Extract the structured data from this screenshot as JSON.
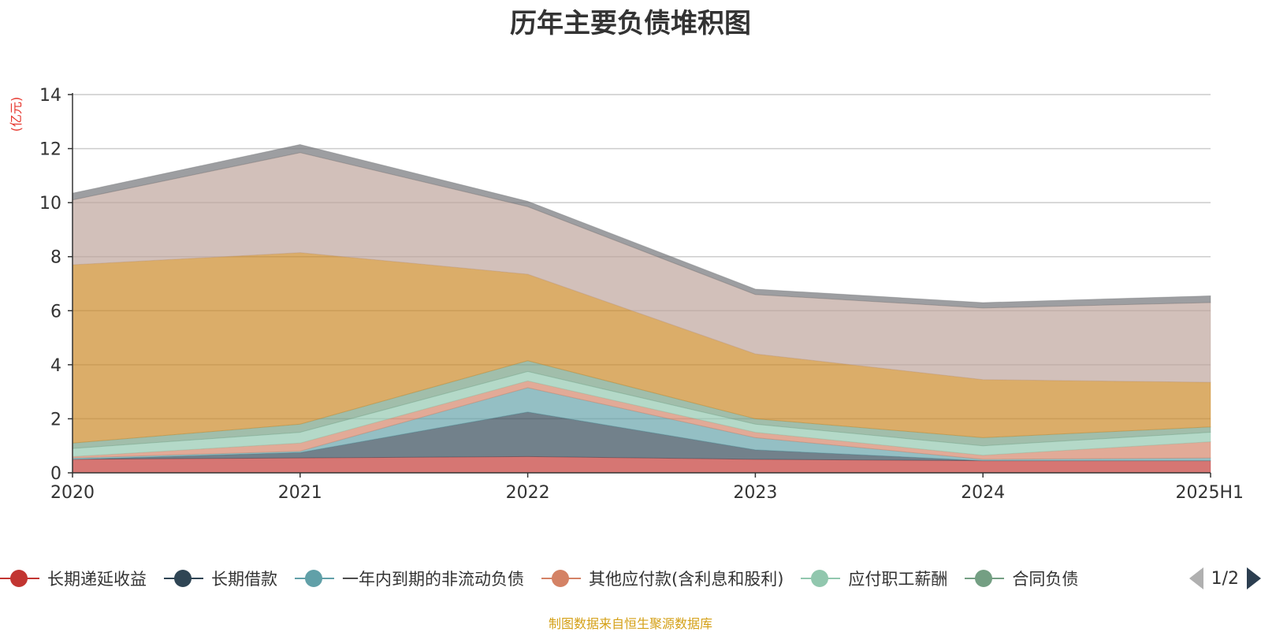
{
  "chart_data": {
    "type": "area",
    "stacked": true,
    "title": "历年主要负债堆积图",
    "ylabel": "(亿元)",
    "ylim": [
      0,
      14
    ],
    "yticks": [
      0,
      2,
      4,
      6,
      8,
      10,
      12,
      14
    ],
    "grid": true,
    "legend_position": "bottom",
    "categories": [
      "2020",
      "2021",
      "2022",
      "2023",
      "2024",
      "2025H1"
    ],
    "series": [
      {
        "name": "长期递延收益",
        "color": "#c23531",
        "values": [
          0.5,
          0.55,
          0.6,
          0.5,
          0.45,
          0.45
        ]
      },
      {
        "name": "长期借款",
        "color": "#2f4554",
        "values": [
          0.0,
          0.2,
          1.65,
          0.35,
          0.0,
          0.0
        ]
      },
      {
        "name": "一年内到期的非流动负债",
        "color": "#61a0a8",
        "values": [
          0.05,
          0.05,
          0.9,
          0.45,
          0.05,
          0.1
        ]
      },
      {
        "name": "其他应付款(含利息和股利)",
        "color": "#d48265",
        "values": [
          0.05,
          0.3,
          0.25,
          0.2,
          0.15,
          0.6
        ]
      },
      {
        "name": "应付职工薪酬",
        "color": "#91c7ae",
        "values": [
          0.3,
          0.4,
          0.35,
          0.3,
          0.35,
          0.35
        ]
      },
      {
        "name": "合同负债",
        "color": "#749f83",
        "values": [
          0.2,
          0.3,
          0.4,
          0.2,
          0.3,
          0.2
        ]
      },
      {
        "name": "",
        "color": "#ca8622",
        "values": [
          6.6,
          6.35,
          3.2,
          2.4,
          2.15,
          1.65
        ]
      },
      {
        "name": "",
        "color": "#bda29a",
        "values": [
          2.4,
          3.7,
          2.5,
          2.2,
          2.65,
          2.95
        ]
      },
      {
        "name": "",
        "color": "#6e7074",
        "values": [
          0.25,
          0.3,
          0.2,
          0.2,
          0.2,
          0.25
        ]
      }
    ]
  },
  "legend": {
    "page": "1/2",
    "visible_series": [
      0,
      1,
      2,
      3,
      4,
      5
    ],
    "last_item_text": "合同负债"
  },
  "source": "制图数据来自恒生聚源数据库"
}
